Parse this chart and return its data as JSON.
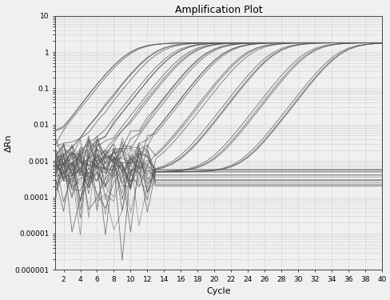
{
  "title": "Amplification Plot",
  "xlabel": "Cycle",
  "ylabel": "ΔRn",
  "xlim": [
    1,
    40
  ],
  "ylim_log": [
    1e-06,
    10
  ],
  "xticks": [
    2,
    4,
    6,
    8,
    10,
    12,
    14,
    16,
    18,
    20,
    22,
    24,
    26,
    28,
    30,
    32,
    34,
    36,
    38,
    40
  ],
  "yticks": [
    1e-06,
    1e-05,
    0.0001,
    0.001,
    0.01,
    0.1,
    1,
    10
  ],
  "ytick_labels": [
    "0.000001",
    "0.00001",
    "0.0001",
    "0.001",
    "0.01",
    "0.1",
    "1",
    "10"
  ],
  "line_color": "#555555",
  "background_color": "#f0f0f0",
  "grid_color": "#b0b0b0",
  "thresholds": [
    10,
    13,
    15,
    17,
    19,
    21,
    24,
    27,
    31,
    35
  ],
  "baseline": 0.0005,
  "plateau": 1.8,
  "steepness": 0.7,
  "noise_end_cycle": 13
}
